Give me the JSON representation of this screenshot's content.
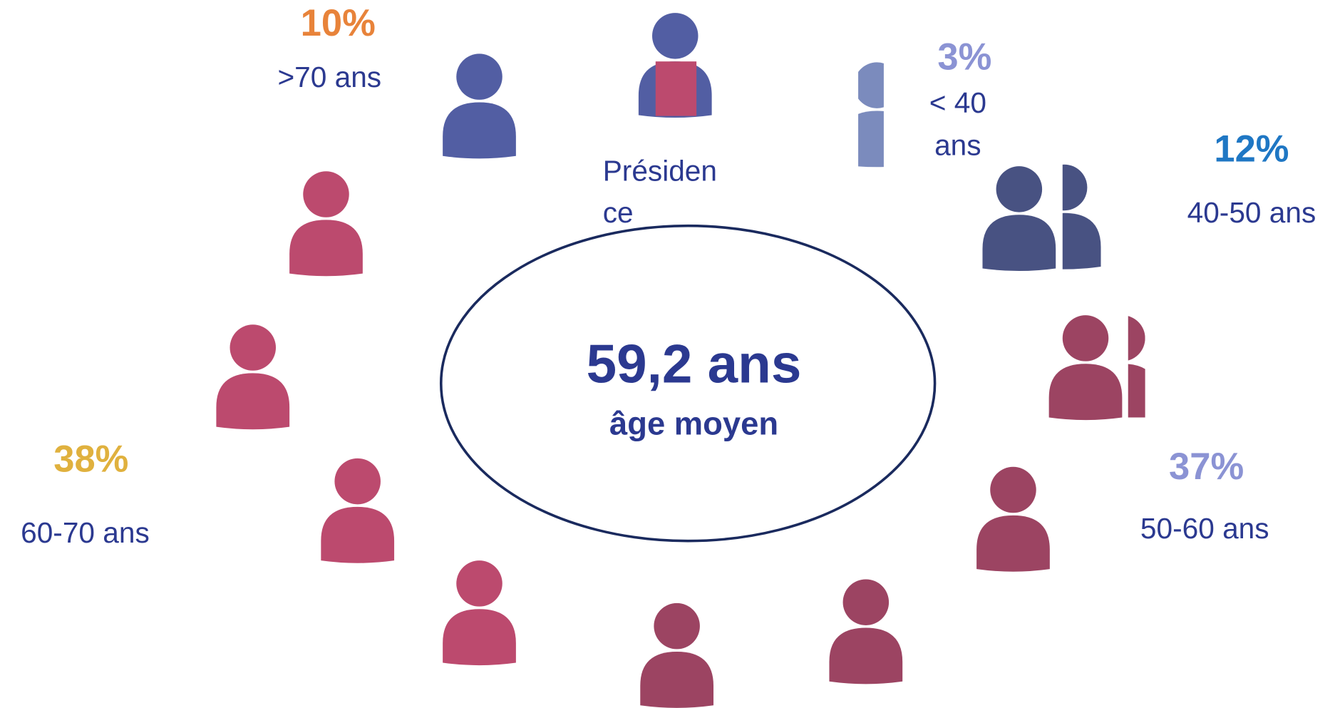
{
  "center": {
    "value": "59,2 ans",
    "label": "âge moyen"
  },
  "president": [
    "Présiden",
    "ce"
  ],
  "groups": [
    {
      "percent": "10%",
      "label": [
        ">70 ans"
      ]
    },
    {
      "percent": "3%",
      "label": [
        "< 40",
        "ans"
      ]
    },
    {
      "percent": "12%",
      "label": [
        "40-50 ans"
      ]
    },
    {
      "percent": "37%",
      "label": [
        "50-60 ans"
      ]
    },
    {
      "percent": "38%",
      "label": [
        "60-70 ans"
      ]
    }
  ]
}
